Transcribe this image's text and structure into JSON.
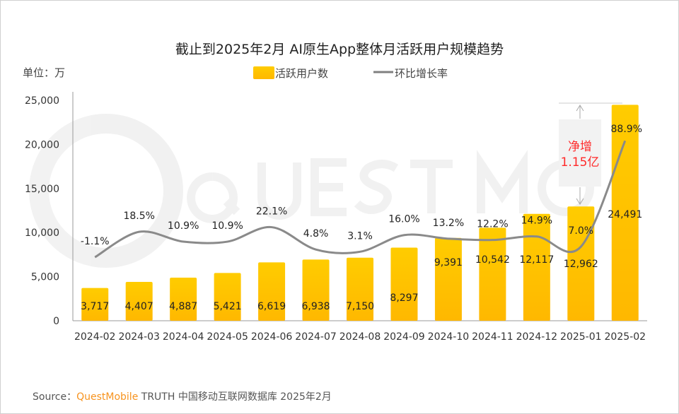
{
  "chart_data": {
    "type": "bar+line",
    "title": "截止到2025年2月 AI原生App整体月活跃用户规模趋势",
    "unit_label": "单位：万",
    "categories": [
      "2024-02",
      "2024-03",
      "2024-04",
      "2024-05",
      "2024-06",
      "2024-07",
      "2024-08",
      "2024-09",
      "2024-10",
      "2024-11",
      "2024-12",
      "2025-01",
      "2025-02"
    ],
    "series": [
      {
        "name": "活跃用户数",
        "type": "bar",
        "color": "#ffc000",
        "values": [
          3717,
          4407,
          4887,
          5421,
          6619,
          6938,
          7150,
          8297,
          9391,
          10542,
          12117,
          12962,
          24491
        ],
        "labels": [
          "3,717",
          "4,407",
          "4,887",
          "5,421",
          "6,619",
          "6,938",
          "7,150",
          "8,297",
          "9,391",
          "10,542",
          "12,117",
          "12,962",
          "24,491"
        ]
      },
      {
        "name": "环比增长率",
        "type": "line",
        "color": "#808080",
        "values": [
          -1.1,
          18.5,
          10.9,
          10.9,
          22.1,
          4.8,
          3.1,
          16.0,
          13.2,
          12.2,
          14.9,
          7.0,
          88.9
        ],
        "labels": [
          "-1.1%",
          "18.5%",
          "10.9%",
          "10.9%",
          "22.1%",
          "4.8%",
          "3.1%",
          "16.0%",
          "13.2%",
          "12.2%",
          "14.9%",
          "7.0%",
          "88.9%"
        ]
      }
    ],
    "ylim": [
      0,
      25000
    ],
    "yticks": [
      0,
      5000,
      10000,
      15000,
      20000,
      25000
    ],
    "ytick_labels": [
      "0",
      "5,000",
      "10,000",
      "15,000",
      "20,000",
      "25,000"
    ],
    "legend": "top-center",
    "grid": false,
    "annotation": {
      "line1": "净增",
      "line2": "1.15亿",
      "color": "#ff2a2a"
    },
    "watermark": "QUEST MOBILE"
  },
  "source": {
    "prefix": "Source：",
    "brand": "QuestMobile",
    "rest": " TRUTH 中国移动互联网数据库 2025年2月"
  }
}
